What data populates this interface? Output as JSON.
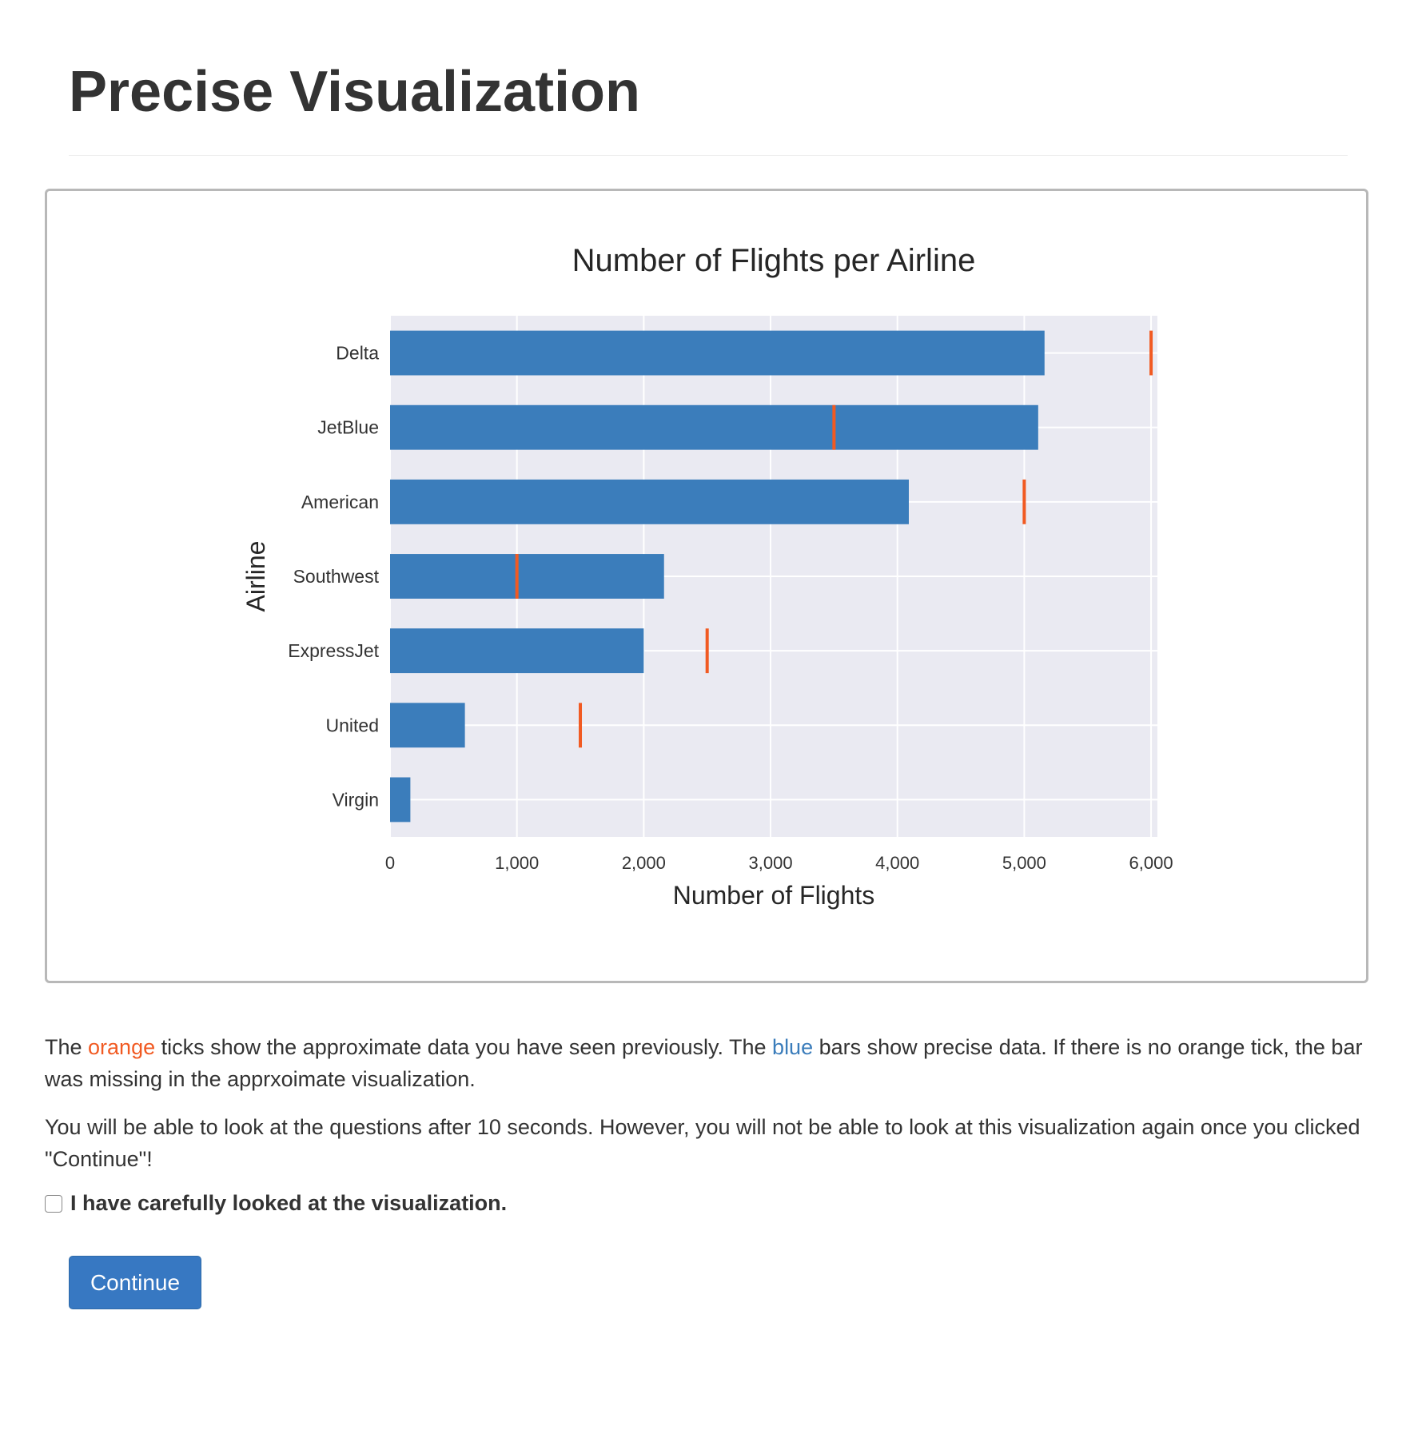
{
  "page": {
    "heading": "Precise Visualization"
  },
  "colors": {
    "bar": "#3b7dbb",
    "tick": "#f15a22",
    "plot_bg": "#eaeaf2",
    "button": "#3778c2"
  },
  "chart_data": {
    "type": "bar",
    "orientation": "horizontal",
    "title": "Number of Flights per Airline",
    "xlabel": "Number of Flights",
    "ylabel": "Airline",
    "categories": [
      "Delta",
      "JetBlue",
      "American",
      "Southwest",
      "ExpressJet",
      "United",
      "Virgin"
    ],
    "series": [
      {
        "name": "precise",
        "values": [
          5160,
          5110,
          4090,
          2160,
          2000,
          590,
          160
        ]
      },
      {
        "name": "approximate",
        "values": [
          6000,
          3500,
          5000,
          1000,
          2500,
          1500,
          null
        ]
      }
    ],
    "xticks": [
      0,
      1000,
      2000,
      3000,
      4000,
      5000,
      6000
    ],
    "xtick_labels": [
      "0",
      "1,000",
      "2,000",
      "3,000",
      "4,000",
      "5,000",
      "6,000"
    ],
    "xlim": [
      0,
      6050
    ],
    "grid": true
  },
  "description": {
    "p1_before_orange": "The ",
    "orange_word": "orange",
    "p1_middle": " ticks show the approximate data you have seen previously. The ",
    "blue_word": "blue",
    "p1_after_blue": " bars show precise data. If there is no orange tick, the bar was missing in the apprxoimate visualization.",
    "p2": "You will be able to look at the questions after 10 seconds. However, you will not be able to look at this visualization again once you clicked \"Continue\"!"
  },
  "confirm": {
    "label": "I have carefully looked at the visualization.",
    "checked": false
  },
  "actions": {
    "continue_label": "Continue"
  }
}
